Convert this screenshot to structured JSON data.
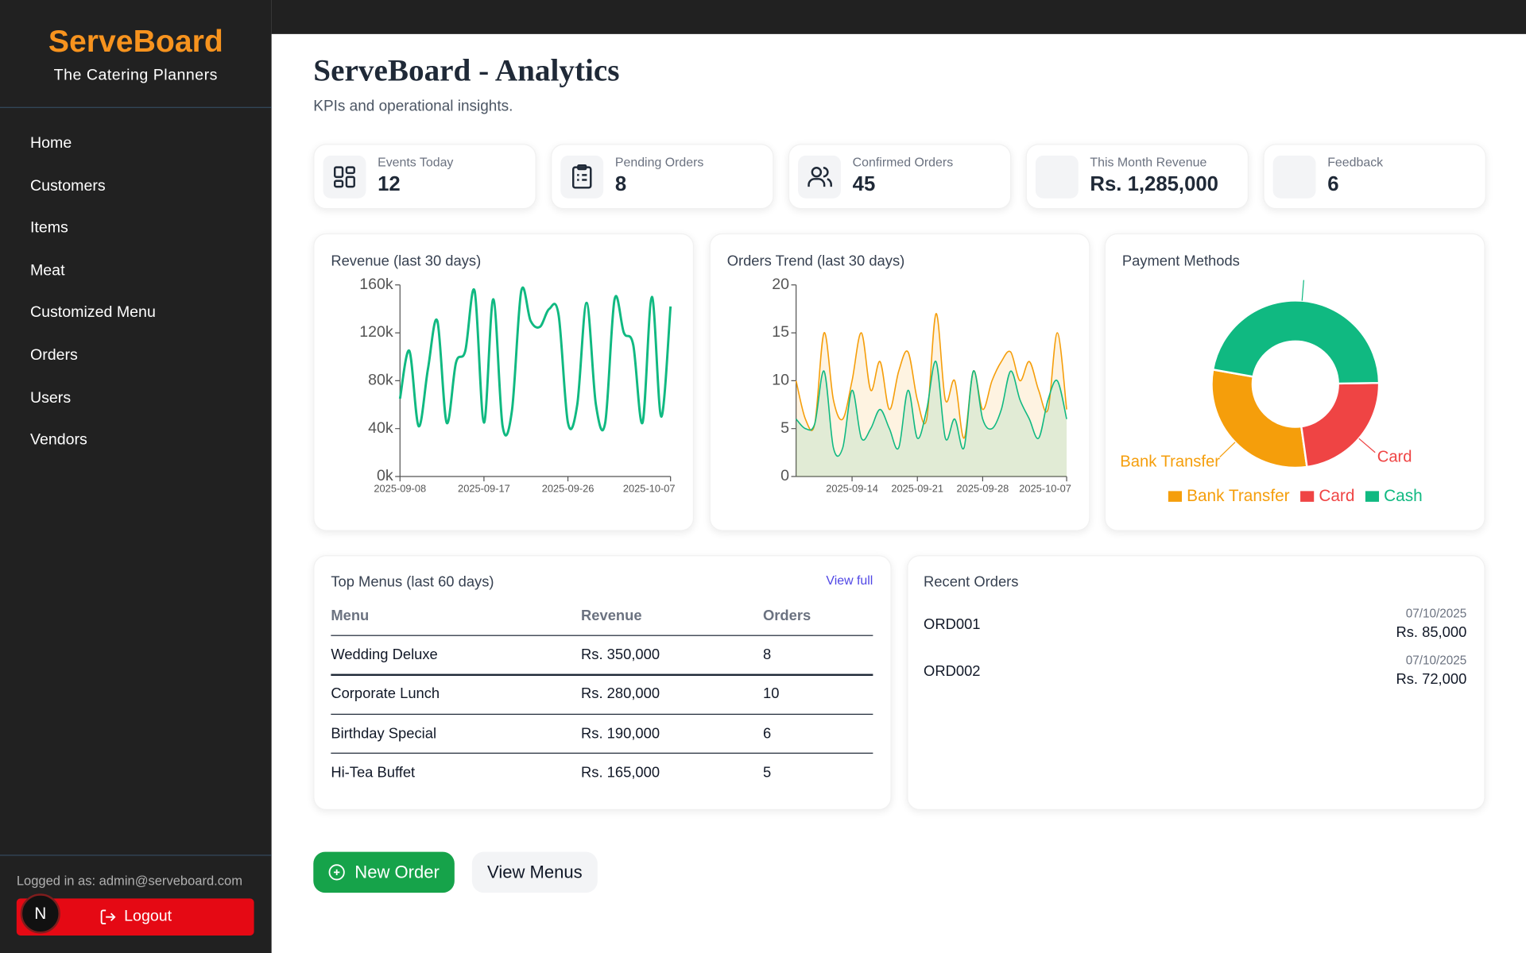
{
  "sidebar": {
    "brand": "ServeBoard",
    "tagline": "The Catering Planners",
    "nav": [
      "Home",
      "Customers",
      "Items",
      "Meat",
      "Customized Menu",
      "Orders",
      "Users",
      "Vendors"
    ],
    "logged_in": "Logged in as: admin@serveboard.com",
    "logout": "Logout",
    "avatar": "N"
  },
  "header": {
    "title": "ServeBoard - Analytics",
    "subtitle": "KPIs and operational insights."
  },
  "kpis": [
    {
      "label": "Events Today",
      "value": 12
    },
    {
      "label": "Pending Orders",
      "value": 8
    },
    {
      "label": "Confirmed Orders",
      "value": 45
    },
    {
      "label": "This Month Revenue",
      "value": "Rs. 1,285,000"
    },
    {
      "label": "Feedback",
      "value": 6
    }
  ],
  "chart_data": [
    {
      "type": "line",
      "title": "Revenue (last 30 days)",
      "categories": [
        "2025-09-08",
        null,
        null,
        null,
        null,
        null,
        null,
        null,
        null,
        "2025-09-17",
        null,
        null,
        null,
        null,
        null,
        null,
        null,
        null,
        "2025-09-26",
        null,
        null,
        null,
        null,
        null,
        null,
        null,
        null,
        null,
        null,
        "2025-10-07"
      ],
      "series": [
        {
          "color": "#10b981",
          "values": [
            65000,
            105000,
            42000,
            90000,
            130000,
            45000,
            95000,
            105000,
            155000,
            45000,
            148000,
            42000,
            55000,
            155000,
            130000,
            125000,
            140000,
            135000,
            45000,
            60000,
            145000,
            60000,
            45000,
            148000,
            120000,
            110000,
            45000,
            150000,
            50000,
            142000
          ]
        }
      ],
      "ylim": [
        0,
        160000
      ],
      "yticks": [
        {
          "value": 0,
          "label": "0k"
        },
        {
          "value": 40000,
          "label": "40k"
        },
        {
          "value": 80000,
          "label": "80k"
        },
        {
          "value": 120000,
          "label": "120k"
        },
        {
          "value": 160000,
          "label": "160k"
        }
      ]
    },
    {
      "type": "area",
      "title": "Orders Trend (last 30 days)",
      "categories": [
        null,
        null,
        null,
        null,
        null,
        null,
        "2025-09-14",
        null,
        null,
        null,
        null,
        null,
        null,
        "2025-09-21",
        null,
        null,
        null,
        null,
        null,
        null,
        "2025-09-28",
        null,
        null,
        null,
        null,
        null,
        null,
        null,
        null,
        "2025-10-07"
      ],
      "series": [
        {
          "color": "#f59e0b",
          "values": [
            10,
            6,
            5.5,
            15,
            8,
            6,
            10,
            15,
            9,
            12,
            7,
            11,
            13,
            8,
            6,
            17,
            8,
            10,
            4,
            11,
            7,
            10,
            12,
            13,
            10,
            12,
            9,
            7,
            15,
            7
          ]
        },
        {
          "color": "#10b981",
          "values": [
            6,
            5,
            5.5,
            11,
            3,
            3,
            9,
            4,
            5,
            7,
            5,
            3,
            9,
            4,
            7,
            12,
            4,
            6,
            3,
            11,
            6,
            5,
            7,
            11,
            8,
            6,
            4,
            8,
            10,
            6
          ]
        }
      ],
      "ylim": [
        0,
        20
      ],
      "yticks": [
        0,
        5,
        10,
        15,
        20
      ]
    },
    {
      "type": "pie",
      "title": "Payment Methods",
      "categories": [
        "Bank Transfer",
        "Card",
        "Cash"
      ],
      "values": [
        30,
        23,
        47
      ],
      "colors": [
        "#f59e0b",
        "#ef4444",
        "#10b981"
      ],
      "legend": "bottom"
    }
  ],
  "top_menus": {
    "title": "Top Menus (last 60 days)",
    "link": "View full",
    "columns": [
      "Menu",
      "Revenue",
      "Orders"
    ],
    "rows": [
      [
        "Wedding Deluxe",
        "Rs. 350,000",
        8
      ],
      [
        "Corporate Lunch",
        "Rs. 280,000",
        10
      ],
      [
        "Birthday Special",
        "Rs. 190,000",
        6
      ],
      [
        "Hi-Tea Buffet",
        "Rs. 165,000",
        5
      ]
    ]
  },
  "recent_orders": {
    "title": "Recent Orders",
    "orders": [
      {
        "id": "ORD001",
        "date": "07/10/2025",
        "amount": "Rs. 85,000"
      },
      {
        "id": "ORD002",
        "date": "07/10/2025",
        "amount": "Rs. 72,000"
      }
    ]
  },
  "actions": {
    "new_order": "New Order",
    "view_menus": "View Menus"
  }
}
